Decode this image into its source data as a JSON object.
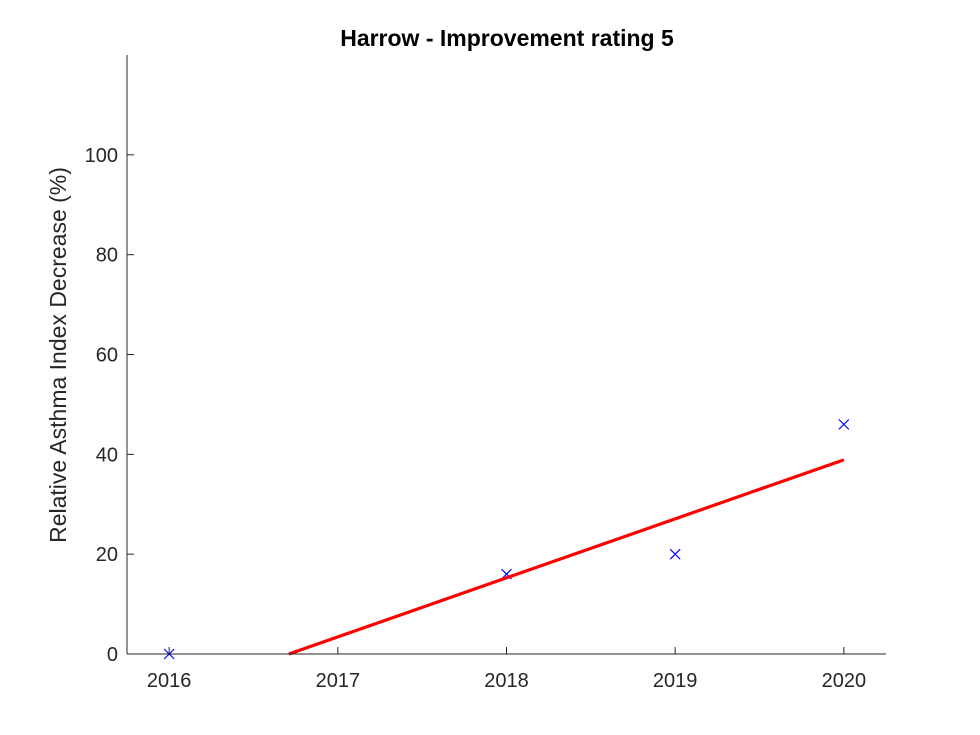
{
  "chart_data": {
    "type": "scatter",
    "title": "Harrow - Improvement rating 5",
    "xlabel": "",
    "ylabel": "Relative Asthma Index Decrease (%)",
    "xlim": [
      2015.75,
      2020.25
    ],
    "ylim": [
      0,
      120
    ],
    "x_ticks": [
      2016,
      2017,
      2018,
      2019,
      2020
    ],
    "y_ticks": [
      0,
      20,
      40,
      60,
      80,
      100
    ],
    "grid": false,
    "legend": "none",
    "series": [
      {
        "kind": "scatter",
        "marker": "x",
        "color": "#0000ff",
        "x": [
          2016,
          2018,
          2019,
          2020
        ],
        "y": [
          0,
          16,
          20,
          46
        ]
      },
      {
        "kind": "line",
        "color": "#ff0000",
        "x": [
          2016.71,
          2020
        ],
        "y": [
          0,
          38.9
        ]
      }
    ]
  }
}
